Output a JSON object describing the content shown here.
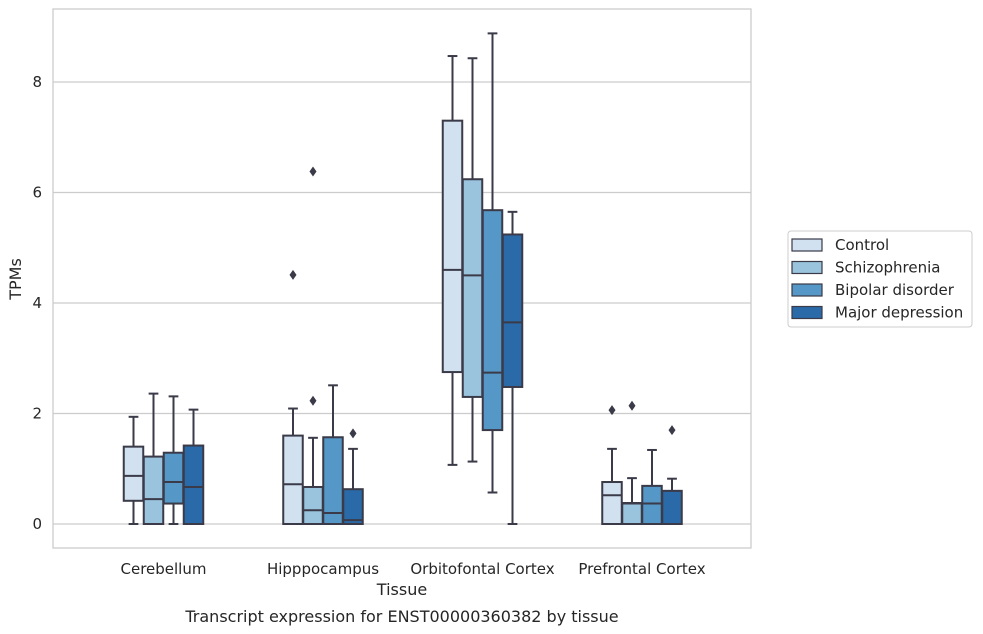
{
  "chart_data": {
    "type": "box",
    "xlabel": "Tissue",
    "ylabel": "TPMs",
    "caption": "Transcript expression for ENST00000360382 by tissue",
    "ylim": [
      -0.4,
      9.3
    ],
    "yticks": [
      0,
      2,
      4,
      6,
      8
    ],
    "ytick_labels": [
      "0",
      "2",
      "4",
      "6",
      "8"
    ],
    "grid": "horizontal",
    "legend_position": "right",
    "categories": [
      "Cerebellum",
      "Hipppocampus",
      "Orbitofontal Cortex",
      "Prefrontal Cortex"
    ],
    "series": [
      {
        "name": "Control",
        "color": "#d1e1f0",
        "boxes": [
          {
            "min": 0.0,
            "q1": 0.42,
            "median": 0.87,
            "q3": 1.4,
            "max": 1.94,
            "outliers": []
          },
          {
            "min": 0.0,
            "q1": 0.0,
            "median": 0.72,
            "q3": 1.6,
            "max": 2.09,
            "outliers": [
              4.51
            ]
          },
          {
            "min": 1.07,
            "q1": 2.75,
            "median": 4.6,
            "q3": 7.3,
            "max": 8.47,
            "outliers": []
          },
          {
            "min": 0.0,
            "q1": 0.0,
            "median": 0.52,
            "q3": 0.76,
            "max": 1.36,
            "outliers": [
              2.06
            ]
          }
        ]
      },
      {
        "name": "Schizophrenia",
        "color": "#9ac4de",
        "boxes": [
          {
            "min": 0.0,
            "q1": 0.0,
            "median": 0.45,
            "q3": 1.22,
            "max": 2.36,
            "outliers": []
          },
          {
            "min": 0.0,
            "q1": 0.0,
            "median": 0.25,
            "q3": 0.67,
            "max": 1.56,
            "outliers": [
              2.23,
              6.38
            ]
          },
          {
            "min": 1.13,
            "q1": 2.3,
            "median": 4.5,
            "q3": 6.24,
            "max": 8.43,
            "outliers": []
          },
          {
            "min": 0.0,
            "q1": 0.0,
            "median": 0.37,
            "q3": 0.38,
            "max": 0.83,
            "outliers": [
              2.14
            ]
          }
        ]
      },
      {
        "name": "Bipolar disorder",
        "color": "#5597c7",
        "boxes": [
          {
            "min": 0.0,
            "q1": 0.37,
            "median": 0.76,
            "q3": 1.29,
            "max": 2.31,
            "outliers": []
          },
          {
            "min": 0.0,
            "q1": 0.0,
            "median": 0.2,
            "q3": 1.57,
            "max": 2.51,
            "outliers": []
          },
          {
            "min": 0.57,
            "q1": 1.7,
            "median": 2.74,
            "q3": 5.68,
            "max": 8.88,
            "outliers": []
          },
          {
            "min": 0.0,
            "q1": 0.0,
            "median": 0.37,
            "q3": 0.69,
            "max": 1.34,
            "outliers": []
          }
        ]
      },
      {
        "name": "Major depression",
        "color": "#2b6aa8",
        "boxes": [
          {
            "min": 0.0,
            "q1": 0.0,
            "median": 0.67,
            "q3": 1.42,
            "max": 2.07,
            "outliers": []
          },
          {
            "min": 0.0,
            "q1": 0.0,
            "median": 0.07,
            "q3": 0.63,
            "max": 1.36,
            "outliers": [
              1.64
            ]
          },
          {
            "min": 0.0,
            "q1": 2.48,
            "median": 3.65,
            "q3": 5.24,
            "max": 5.65,
            "outliers": []
          },
          {
            "min": 0.0,
            "q1": 0.0,
            "median": 0.0,
            "q3": 0.6,
            "max": 0.82,
            "outliers": [
              1.7
            ]
          }
        ]
      }
    ]
  }
}
